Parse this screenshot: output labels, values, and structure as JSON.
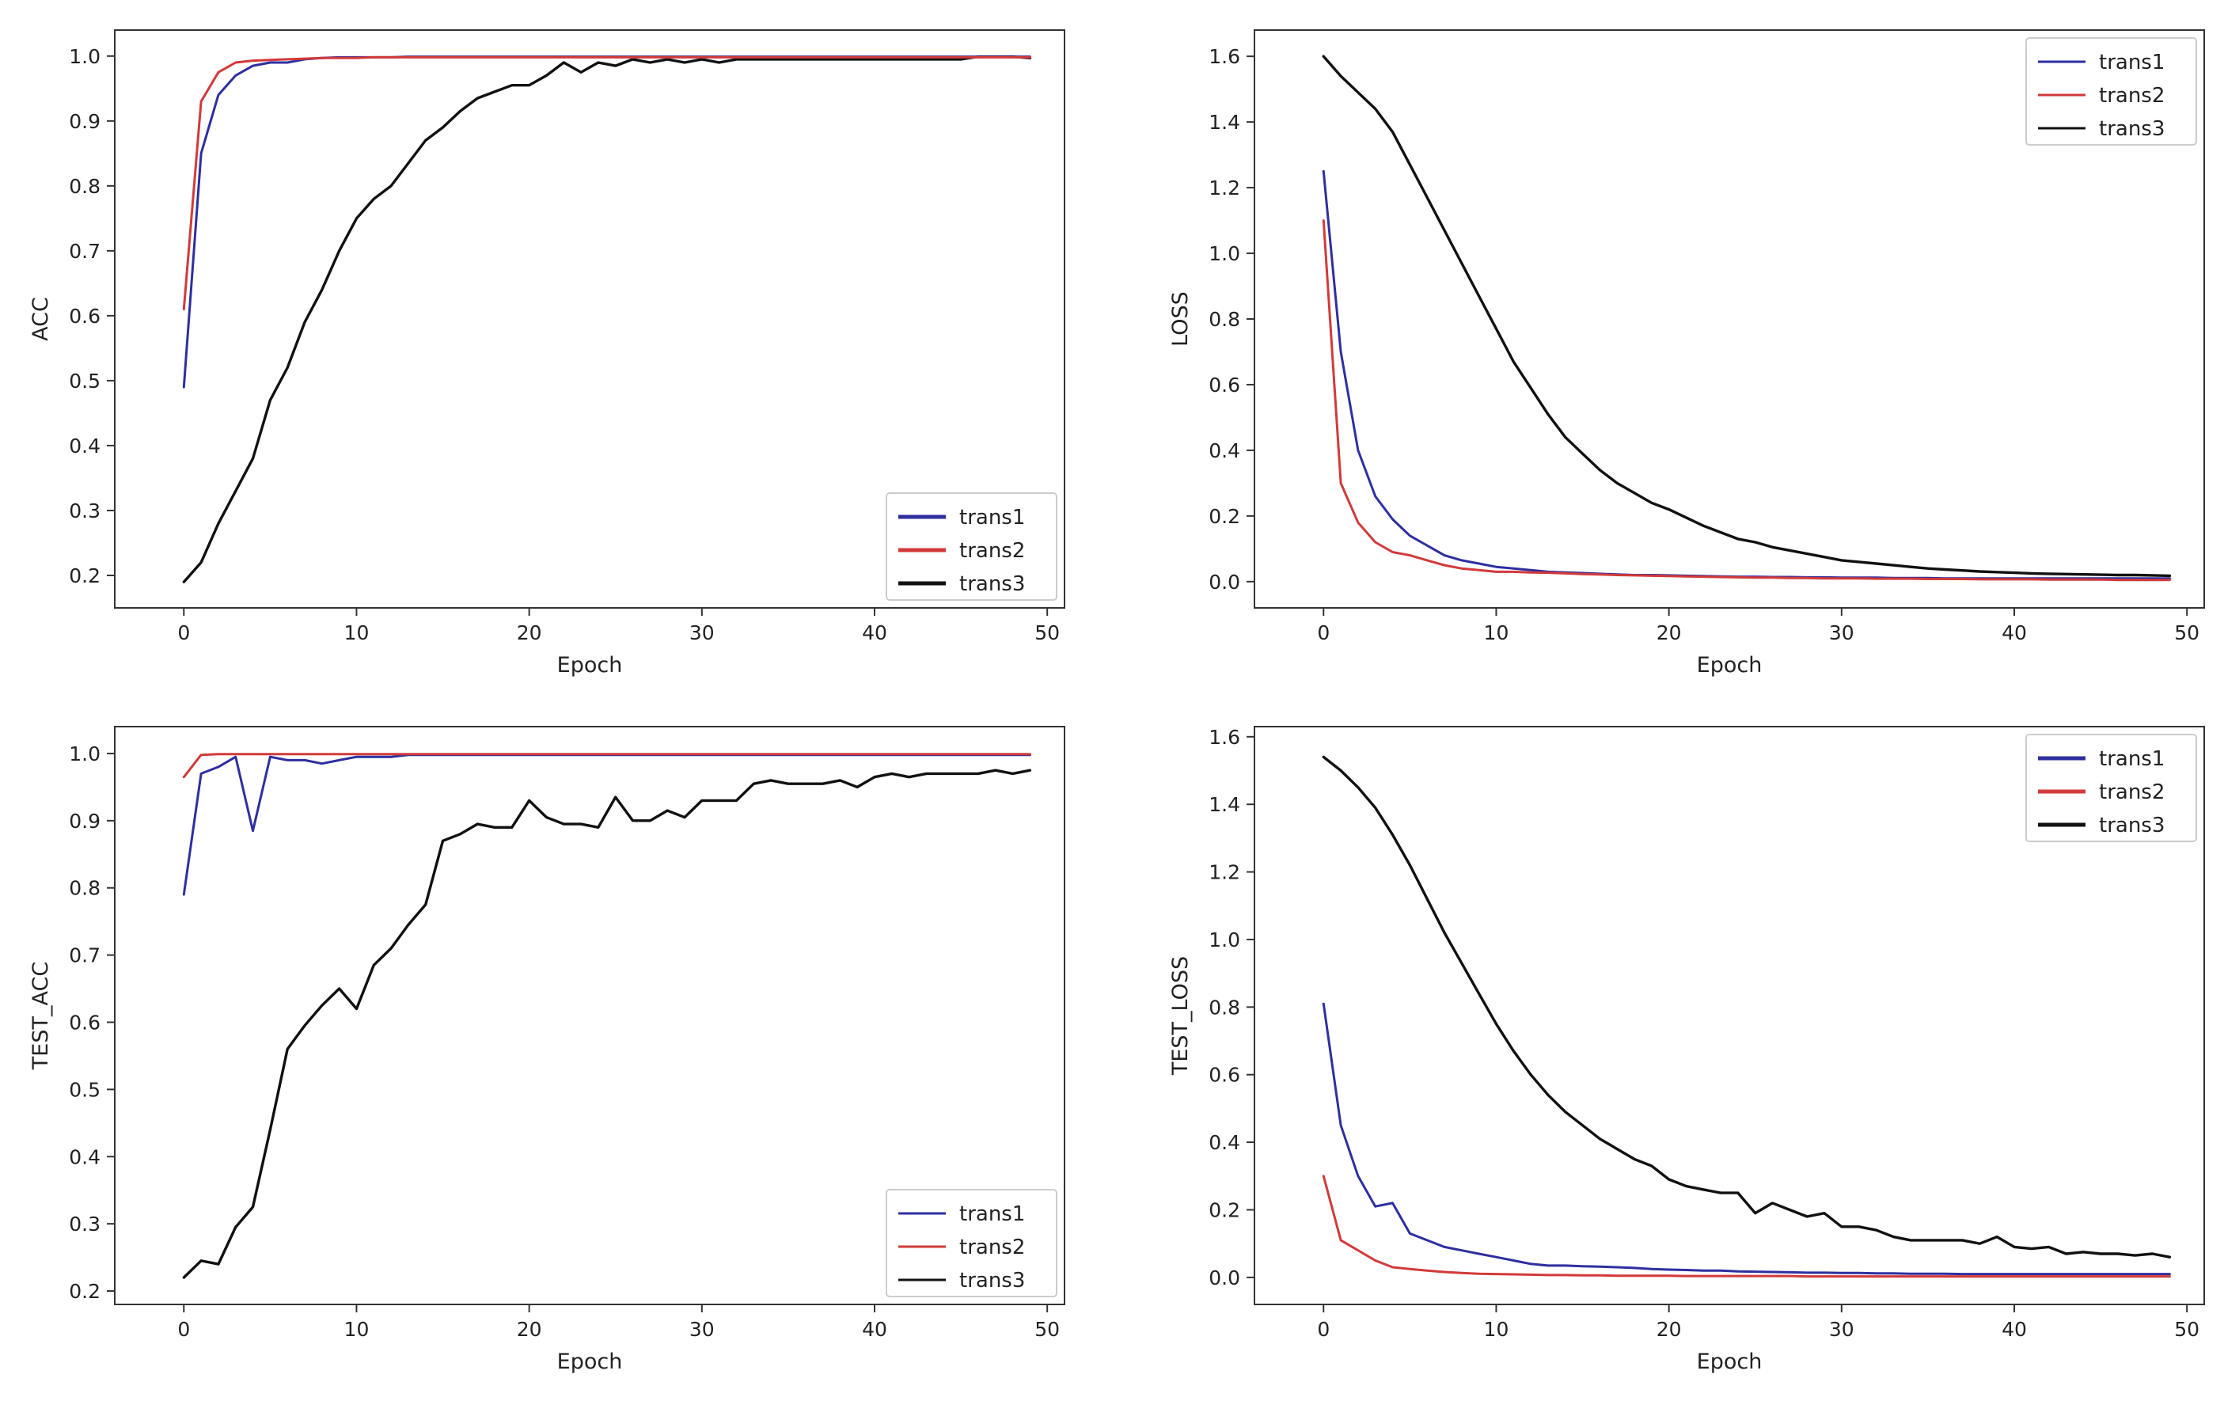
{
  "colors": {
    "trans1": "#2e2fa0",
    "trans2": "#d23a3a",
    "trans3": "#111111",
    "axis": "#333333"
  },
  "chart_data": [
    {
      "id": "train-acc",
      "type": "line",
      "xlabel": "Epoch",
      "ylabel": "ACC",
      "xlim": [
        -4,
        51
      ],
      "ylim": [
        0.15,
        1.04
      ],
      "xticks": [
        0,
        10,
        20,
        30,
        40,
        50
      ],
      "xtick_labels": [
        "0",
        "10",
        "20",
        "30",
        "40",
        "50"
      ],
      "yticks": [
        0.2,
        0.3,
        0.4,
        0.5,
        0.6,
        0.7,
        0.8,
        0.9,
        1.0
      ],
      "ytick_labels": [
        "0.2",
        "0.3",
        "0.4",
        "0.5",
        "0.6",
        "0.7",
        "0.8",
        "0.9",
        "1.0"
      ],
      "legend": {
        "location": "lower right",
        "entries": [
          "trans1",
          "trans2",
          "trans3"
        ]
      },
      "series": [
        {
          "name": "trans1",
          "color": "#2e2fa0",
          "values": [
            0.49,
            0.85,
            0.94,
            0.97,
            0.985,
            0.99,
            0.99,
            0.995,
            0.997,
            0.998,
            0.998,
            0.998,
            0.998,
            0.999,
            0.999,
            0.999,
            0.999,
            0.999,
            0.999,
            0.999,
            0.999,
            0.999,
            0.999,
            0.999,
            0.999,
            0.999,
            0.999,
            0.999,
            0.999,
            0.999,
            0.999,
            0.999,
            0.999,
            0.999,
            0.999,
            0.999,
            0.999,
            0.999,
            0.999,
            0.999,
            0.999,
            0.999,
            0.999,
            0.999,
            0.999,
            0.999,
            0.999,
            0.999,
            0.999,
            0.999
          ]
        },
        {
          "name": "trans2",
          "color": "#d23a3a",
          "values": [
            0.61,
            0.93,
            0.975,
            0.99,
            0.993,
            0.994,
            0.995,
            0.996,
            0.997,
            0.997,
            0.997,
            0.998,
            0.998,
            0.998,
            0.998,
            0.998,
            0.998,
            0.998,
            0.998,
            0.998,
            0.998,
            0.998,
            0.998,
            0.998,
            0.998,
            0.998,
            0.998,
            0.998,
            0.998,
            0.998,
            0.998,
            0.998,
            0.998,
            0.998,
            0.998,
            0.998,
            0.998,
            0.998,
            0.998,
            0.998,
            0.998,
            0.998,
            0.998,
            0.998,
            0.998,
            0.998,
            0.998,
            0.998,
            0.998,
            0.998
          ]
        },
        {
          "name": "trans3",
          "color": "#111111",
          "values": [
            0.19,
            0.22,
            0.28,
            0.33,
            0.38,
            0.47,
            0.52,
            0.59,
            0.64,
            0.7,
            0.75,
            0.78,
            0.8,
            0.835,
            0.87,
            0.89,
            0.915,
            0.935,
            0.945,
            0.955,
            0.955,
            0.97,
            0.99,
            0.975,
            0.99,
            0.985,
            0.995,
            0.99,
            0.995,
            0.99,
            0.995,
            0.99,
            0.995,
            0.995,
            0.995,
            0.995,
            0.995,
            0.995,
            0.995,
            0.995,
            0.995,
            0.995,
            0.995,
            0.995,
            0.995,
            0.995,
            0.999,
            0.999,
            0.999,
            0.997
          ]
        }
      ]
    },
    {
      "id": "train-loss",
      "type": "line",
      "xlabel": "Epoch",
      "ylabel": "LOSS",
      "xlim": [
        -4,
        51
      ],
      "ylim": [
        -0.08,
        1.68
      ],
      "xticks": [
        0,
        10,
        20,
        30,
        40,
        50
      ],
      "xtick_labels": [
        "0",
        "10",
        "20",
        "30",
        "40",
        "50"
      ],
      "yticks": [
        0.0,
        0.2,
        0.4,
        0.6,
        0.8,
        1.0,
        1.2,
        1.4,
        1.6
      ],
      "ytick_labels": [
        "0.0",
        "0.2",
        "0.4",
        "0.6",
        "0.8",
        "1.0",
        "1.2",
        "1.4",
        "1.6"
      ],
      "legend": {
        "location": "upper right",
        "entries": [
          "trans1",
          "trans2",
          "trans3"
        ]
      },
      "series": [
        {
          "name": "trans1",
          "color": "#2e2fa0",
          "values": [
            1.25,
            0.7,
            0.4,
            0.26,
            0.19,
            0.14,
            0.11,
            0.08,
            0.065,
            0.055,
            0.045,
            0.04,
            0.035,
            0.03,
            0.028,
            0.026,
            0.024,
            0.022,
            0.02,
            0.02,
            0.019,
            0.018,
            0.017,
            0.016,
            0.015,
            0.015,
            0.014,
            0.014,
            0.013,
            0.013,
            0.012,
            0.012,
            0.012,
            0.011,
            0.011,
            0.011,
            0.01,
            0.01,
            0.01,
            0.01,
            0.01,
            0.01,
            0.01,
            0.01,
            0.01,
            0.01,
            0.01,
            0.01,
            0.01,
            0.01
          ]
        },
        {
          "name": "trans2",
          "color": "#d23a3a",
          "values": [
            1.1,
            0.3,
            0.18,
            0.12,
            0.09,
            0.08,
            0.065,
            0.05,
            0.04,
            0.035,
            0.03,
            0.03,
            0.028,
            0.027,
            0.025,
            0.023,
            0.022,
            0.02,
            0.019,
            0.018,
            0.017,
            0.016,
            0.015,
            0.014,
            0.013,
            0.012,
            0.012,
            0.011,
            0.011,
            0.01,
            0.01,
            0.01,
            0.009,
            0.009,
            0.009,
            0.008,
            0.008,
            0.008,
            0.007,
            0.007,
            0.007,
            0.007,
            0.006,
            0.006,
            0.006,
            0.006,
            0.005,
            0.005,
            0.005,
            0.005
          ]
        },
        {
          "name": "trans3",
          "color": "#111111",
          "values": [
            1.6,
            1.54,
            1.49,
            1.44,
            1.37,
            1.27,
            1.17,
            1.07,
            0.97,
            0.87,
            0.77,
            0.67,
            0.59,
            0.51,
            0.44,
            0.39,
            0.34,
            0.3,
            0.27,
            0.24,
            0.22,
            0.195,
            0.17,
            0.15,
            0.13,
            0.12,
            0.105,
            0.095,
            0.085,
            0.075,
            0.065,
            0.06,
            0.055,
            0.05,
            0.045,
            0.04,
            0.037,
            0.034,
            0.031,
            0.029,
            0.027,
            0.025,
            0.024,
            0.023,
            0.022,
            0.021,
            0.02,
            0.02,
            0.019,
            0.018
          ]
        }
      ]
    },
    {
      "id": "test-acc",
      "type": "line",
      "xlabel": "Epoch",
      "ylabel": "TEST_ACC",
      "xlim": [
        -4,
        51
      ],
      "ylim": [
        0.18,
        1.04
      ],
      "xticks": [
        0,
        10,
        20,
        30,
        40,
        50
      ],
      "xtick_labels": [
        "0",
        "10",
        "20",
        "30",
        "40",
        "50"
      ],
      "yticks": [
        0.2,
        0.3,
        0.4,
        0.5,
        0.6,
        0.7,
        0.8,
        0.9,
        1.0
      ],
      "ytick_labels": [
        "0.2",
        "0.3",
        "0.4",
        "0.5",
        "0.6",
        "0.7",
        "0.8",
        "0.9",
        "1.0"
      ],
      "legend": {
        "location": "lower right",
        "entries": [
          "trans1",
          "trans2",
          "trans3"
        ]
      },
      "series": [
        {
          "name": "trans1",
          "color": "#2e2fa0",
          "values": [
            0.79,
            0.97,
            0.98,
            0.995,
            0.885,
            0.995,
            0.99,
            0.99,
            0.985,
            0.99,
            0.995,
            0.995,
            0.995,
            0.998,
            0.998,
            0.998,
            0.998,
            0.998,
            0.998,
            0.998,
            0.998,
            0.998,
            0.998,
            0.998,
            0.998,
            0.998,
            0.998,
            0.998,
            0.998,
            0.998,
            0.998,
            0.998,
            0.998,
            0.998,
            0.998,
            0.998,
            0.998,
            0.998,
            0.998,
            0.998,
            0.998,
            0.998,
            0.998,
            0.998,
            0.998,
            0.998,
            0.998,
            0.998,
            0.998,
            0.998
          ]
        },
        {
          "name": "trans2",
          "color": "#d23a3a",
          "values": [
            0.965,
            0.998,
            0.999,
            0.999,
            0.999,
            0.999,
            0.999,
            0.999,
            0.999,
            0.999,
            0.999,
            0.999,
            0.999,
            0.999,
            0.999,
            0.999,
            0.999,
            0.999,
            0.999,
            0.999,
            0.999,
            0.999,
            0.999,
            0.999,
            0.999,
            0.999,
            0.999,
            0.999,
            0.999,
            0.999,
            0.999,
            0.999,
            0.999,
            0.999,
            0.999,
            0.999,
            0.999,
            0.999,
            0.999,
            0.999,
            0.999,
            0.999,
            0.999,
            0.999,
            0.999,
            0.999,
            0.999,
            0.999,
            0.999,
            0.999
          ]
        },
        {
          "name": "trans3",
          "color": "#111111",
          "values": [
            0.22,
            0.245,
            0.24,
            0.295,
            0.325,
            0.44,
            0.56,
            0.595,
            0.625,
            0.65,
            0.62,
            0.685,
            0.71,
            0.745,
            0.775,
            0.87,
            0.88,
            0.895,
            0.89,
            0.89,
            0.93,
            0.905,
            0.895,
            0.895,
            0.89,
            0.935,
            0.9,
            0.9,
            0.915,
            0.905,
            0.93,
            0.93,
            0.93,
            0.955,
            0.96,
            0.955,
            0.955,
            0.955,
            0.96,
            0.95,
            0.965,
            0.97,
            0.965,
            0.97,
            0.97,
            0.97,
            0.97,
            0.975,
            0.97,
            0.975
          ]
        }
      ]
    },
    {
      "id": "test-loss",
      "type": "line",
      "xlabel": "Epoch",
      "ylabel": "TEST_LOSS",
      "xlim": [
        -4,
        51
      ],
      "ylim": [
        -0.08,
        1.63
      ],
      "xticks": [
        0,
        10,
        20,
        30,
        40,
        50
      ],
      "xtick_labels": [
        "0",
        "10",
        "20",
        "30",
        "40",
        "50"
      ],
      "yticks": [
        0.0,
        0.2,
        0.4,
        0.6,
        0.8,
        1.0,
        1.2,
        1.4,
        1.6
      ],
      "ytick_labels": [
        "0.0",
        "0.2",
        "0.4",
        "0.6",
        "0.8",
        "1.0",
        "1.2",
        "1.4",
        "1.6"
      ],
      "legend": {
        "location": "upper right",
        "entries": [
          "trans1",
          "trans2",
          "trans3"
        ]
      },
      "series": [
        {
          "name": "trans1",
          "color": "#2e2fa0",
          "values": [
            0.81,
            0.45,
            0.3,
            0.21,
            0.22,
            0.13,
            0.11,
            0.09,
            0.08,
            0.07,
            0.06,
            0.05,
            0.04,
            0.035,
            0.035,
            0.033,
            0.032,
            0.03,
            0.028,
            0.025,
            0.023,
            0.022,
            0.02,
            0.02,
            0.018,
            0.017,
            0.016,
            0.015,
            0.014,
            0.014,
            0.013,
            0.013,
            0.012,
            0.012,
            0.011,
            0.011,
            0.011,
            0.01,
            0.01,
            0.01,
            0.01,
            0.01,
            0.01,
            0.01,
            0.01,
            0.01,
            0.01,
            0.01,
            0.01,
            0.01
          ]
        },
        {
          "name": "trans2",
          "color": "#d23a3a",
          "values": [
            0.3,
            0.11,
            0.08,
            0.05,
            0.03,
            0.025,
            0.02,
            0.016,
            0.013,
            0.011,
            0.01,
            0.009,
            0.008,
            0.007,
            0.007,
            0.006,
            0.006,
            0.005,
            0.005,
            0.005,
            0.005,
            0.004,
            0.004,
            0.004,
            0.004,
            0.004,
            0.004,
            0.004,
            0.003,
            0.003,
            0.003,
            0.003,
            0.003,
            0.003,
            0.003,
            0.003,
            0.003,
            0.003,
            0.003,
            0.003,
            0.003,
            0.003,
            0.003,
            0.003,
            0.003,
            0.003,
            0.003,
            0.003,
            0.003,
            0.003
          ]
        },
        {
          "name": "trans3",
          "color": "#111111",
          "values": [
            1.54,
            1.5,
            1.45,
            1.39,
            1.31,
            1.22,
            1.12,
            1.02,
            0.93,
            0.84,
            0.75,
            0.67,
            0.6,
            0.54,
            0.49,
            0.45,
            0.41,
            0.38,
            0.35,
            0.33,
            0.29,
            0.27,
            0.26,
            0.25,
            0.25,
            0.19,
            0.22,
            0.2,
            0.18,
            0.19,
            0.15,
            0.15,
            0.14,
            0.12,
            0.11,
            0.11,
            0.11,
            0.11,
            0.1,
            0.12,
            0.09,
            0.085,
            0.09,
            0.07,
            0.075,
            0.07,
            0.07,
            0.065,
            0.07,
            0.06
          ]
        }
      ]
    }
  ]
}
